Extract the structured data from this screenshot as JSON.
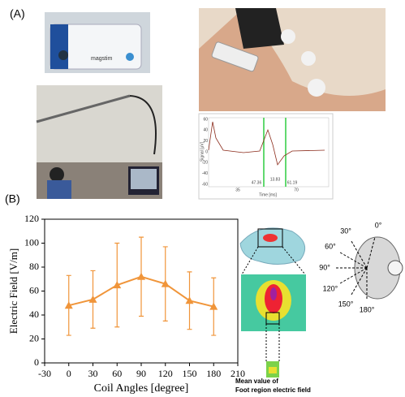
{
  "panel_a": {
    "label": "(A)",
    "device_brand": "magstim",
    "signal_plot": {
      "y_label": "Signal [μV]",
      "x_label": "Time [ms]",
      "yticks": [
        "60",
        "40",
        "20",
        "0",
        "-20",
        "-40",
        "-60"
      ],
      "xticks": [
        "35",
        "70"
      ],
      "markers": [
        "47.36",
        "13.83",
        "61.19"
      ]
    }
  },
  "panel_b": {
    "label": "(B)",
    "annotation": [
      "Mean value of",
      "Foot region electric field"
    ],
    "coil_angles": [
      "0°",
      "30°",
      "60°",
      "90°",
      "120°",
      "150°",
      "180°"
    ]
  },
  "chart_data": {
    "type": "line",
    "y_label": "Electric Field [V/m]",
    "x_label": "Coil Angles [degree]",
    "x": [
      0,
      30,
      60,
      90,
      120,
      150,
      180
    ],
    "series": [
      {
        "color": "#f0953a",
        "values": [
          48,
          53,
          65,
          72,
          66,
          52,
          47
        ],
        "errors": [
          25,
          24,
          35,
          33,
          31,
          24,
          24
        ]
      }
    ],
    "xlim": [
      -30,
      210
    ],
    "xticks": [
      -30,
      0,
      30,
      60,
      90,
      120,
      150,
      180,
      210
    ],
    "ylim": [
      0,
      120
    ],
    "yticks": [
      0,
      20,
      40,
      60,
      80,
      100,
      120
    ]
  }
}
